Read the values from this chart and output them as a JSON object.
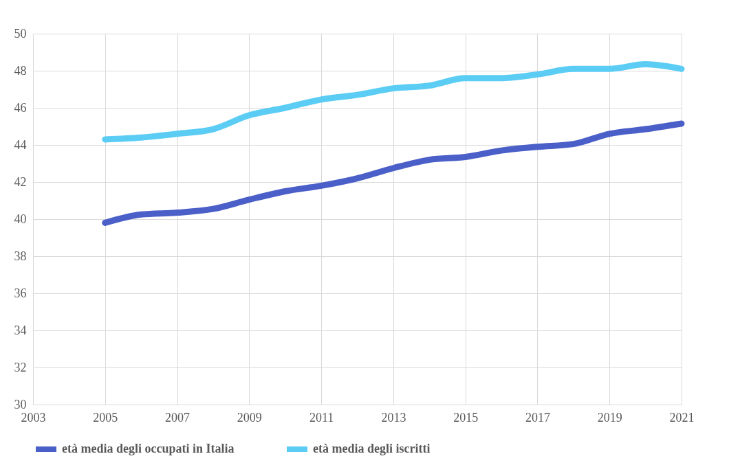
{
  "chart_data": {
    "type": "line",
    "x": [
      2005,
      2006,
      2007,
      2008,
      2009,
      2010,
      2011,
      2012,
      2013,
      2014,
      2015,
      2016,
      2017,
      2018,
      2019,
      2020,
      2021
    ],
    "series": [
      {
        "name": "età media degli occupati in Italia",
        "color": "#4a5fc8",
        "values": [
          39.8,
          40.25,
          40.35,
          40.55,
          41.05,
          41.5,
          41.8,
          42.2,
          42.75,
          43.2,
          43.35,
          43.7,
          43.9,
          44.05,
          44.6,
          44.85,
          45.15
        ]
      },
      {
        "name": "età media degli iscritti",
        "color": "#5bcdf5",
        "values": [
          44.3,
          44.4,
          44.6,
          44.85,
          45.6,
          46.0,
          46.45,
          46.7,
          47.05,
          47.2,
          47.6,
          47.6,
          47.8,
          48.1,
          48.1,
          48.35,
          48.1
        ]
      }
    ],
    "xlim": [
      2003,
      2021
    ],
    "xticks": [
      2003,
      2005,
      2007,
      2009,
      2011,
      2013,
      2015,
      2017,
      2019,
      2021
    ],
    "ylim": [
      30,
      50
    ],
    "yticks": [
      30,
      32,
      34,
      36,
      38,
      40,
      42,
      44,
      46,
      48,
      50
    ],
    "grid": true,
    "legend": "bottom",
    "marker": "none",
    "line_style": "solid"
  }
}
